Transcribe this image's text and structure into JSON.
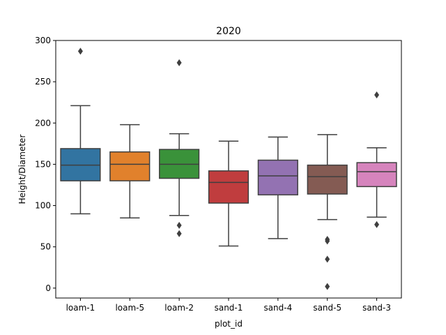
{
  "chart_data": {
    "type": "box",
    "title": "2020",
    "xlabel": "plot_id",
    "ylabel": "Height/Diameter",
    "ylim": [
      -12,
      300
    ],
    "yticks": [
      0,
      50,
      100,
      150,
      200,
      250,
      300
    ],
    "grid": false,
    "legend": "none",
    "categories": [
      "loam-1",
      "loam-5",
      "loam-2",
      "sand-1",
      "sand-4",
      "sand-5",
      "sand-3"
    ],
    "series": [
      {
        "category": "loam-1",
        "color": "#3274a1",
        "whisker_low": 90,
        "q1": 130,
        "median": 149,
        "q3": 169,
        "whisker_high": 221,
        "outliers": [
          287
        ]
      },
      {
        "category": "loam-5",
        "color": "#e1812c",
        "whisker_low": 85,
        "q1": 130,
        "median": 150,
        "q3": 165,
        "whisker_high": 198,
        "outliers": []
      },
      {
        "category": "loam-2",
        "color": "#3a923a",
        "whisker_low": 88,
        "q1": 133,
        "median": 150,
        "q3": 168,
        "whisker_high": 187,
        "outliers": [
          273,
          76,
          66
        ]
      },
      {
        "category": "sand-1",
        "color": "#c03d3e",
        "whisker_low": 51,
        "q1": 103,
        "median": 128,
        "q3": 142,
        "whisker_high": 178,
        "outliers": []
      },
      {
        "category": "sand-4",
        "color": "#9372b2",
        "whisker_low": 60,
        "q1": 113,
        "median": 136,
        "q3": 155,
        "whisker_high": 183,
        "outliers": []
      },
      {
        "category": "sand-5",
        "color": "#845b53",
        "whisker_low": 83,
        "q1": 114,
        "median": 135,
        "q3": 149,
        "whisker_high": 186,
        "outliers": [
          59,
          57,
          35,
          2
        ]
      },
      {
        "category": "sand-3",
        "color": "#d684bd",
        "whisker_low": 86,
        "q1": 123,
        "median": 141,
        "q3": 152,
        "whisker_high": 170,
        "outliers": [
          234,
          77
        ]
      }
    ]
  }
}
